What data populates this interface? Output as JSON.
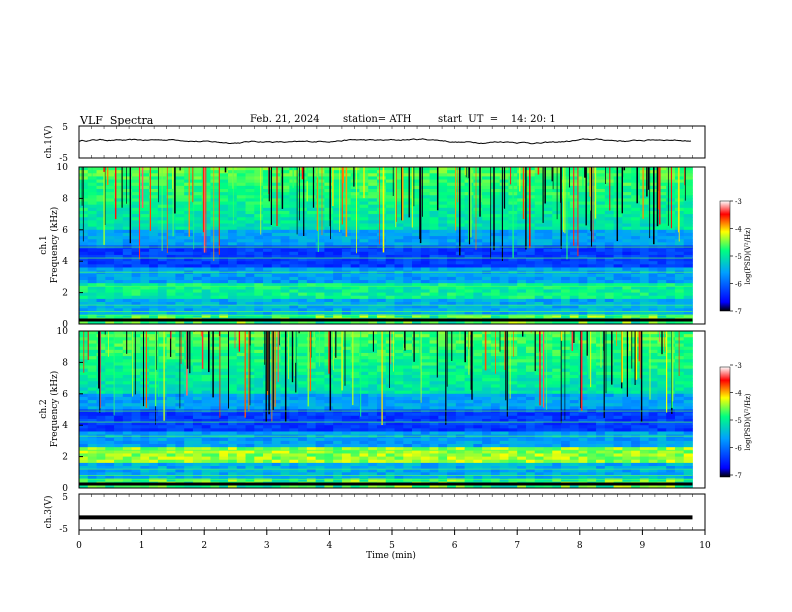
{
  "header": {
    "title": "VLF  Spectra",
    "date": "Feb. 21, 2024",
    "station": "station= ATH",
    "start": "start  UT  =    14: 20: 1"
  },
  "chart_data": [
    {
      "type": "line",
      "panel": "ch1-timeseries",
      "ylabel": "ch.1(V)",
      "ylim": [
        -5,
        5
      ],
      "y_ticks": [
        "5",
        "-5"
      ],
      "x_range_min": [
        0,
        9.8
      ],
      "approx_level_volts": 0.3,
      "series_color": "#000000"
    },
    {
      "type": "heatmap",
      "panel": "ch1-spectrogram",
      "ylabel": "ch.1\nFrequency (kHz)",
      "ylabel_channel": "ch.1",
      "ylabel_freq": "Frequency (kHz)",
      "ylim": [
        0,
        10
      ],
      "y_ticks": [
        "0",
        "2",
        "4",
        "6",
        "8",
        "10"
      ],
      "x_range_min": [
        0,
        9.8
      ],
      "colorbar": {
        "label": "log(PSD)(V²/Hz)",
        "range": [
          -7,
          -3
        ],
        "ticks": [
          "-3",
          "-4",
          "-5",
          "-6",
          "-7"
        ],
        "colors": [
          "#000000",
          "#0000ff",
          "#00a0ff",
          "#00ff80",
          "#ffff00",
          "#ff0000",
          "#ffffff"
        ]
      }
    },
    {
      "type": "heatmap",
      "panel": "ch2-spectrogram",
      "ylabel": "ch.2\nFrequency (kHz)",
      "ylabel_channel": "ch.2",
      "ylabel_freq": "Frequency (kHz)",
      "ylim": [
        0,
        10
      ],
      "y_ticks": [
        "0",
        "2",
        "4",
        "6",
        "8",
        "10"
      ],
      "x_range_min": [
        0,
        9.8
      ],
      "colorbar": {
        "label": "log(PSD)(V²/Hz)",
        "range": [
          -7,
          -3
        ],
        "ticks": [
          "-3",
          "-4",
          "-5",
          "-6",
          "-7"
        ],
        "colors": [
          "#000000",
          "#0000ff",
          "#00a0ff",
          "#00ff80",
          "#ffff00",
          "#ff0000",
          "#ffffff"
        ]
      }
    },
    {
      "type": "line",
      "panel": "ch3-timeseries",
      "ylabel": "ch.3(V)",
      "ylim": [
        -5,
        5
      ],
      "y_ticks": [
        "5",
        "-5"
      ],
      "x_range_min": [
        0,
        9.8
      ],
      "approx_level_volts": -1.5,
      "series_color": "#000000"
    }
  ],
  "x_axis": {
    "label": "Time  (min)",
    "range": [
      0,
      10
    ],
    "ticks": [
      "0",
      "1",
      "2",
      "3",
      "4",
      "5",
      "6",
      "7",
      "8",
      "9",
      "10"
    ]
  }
}
